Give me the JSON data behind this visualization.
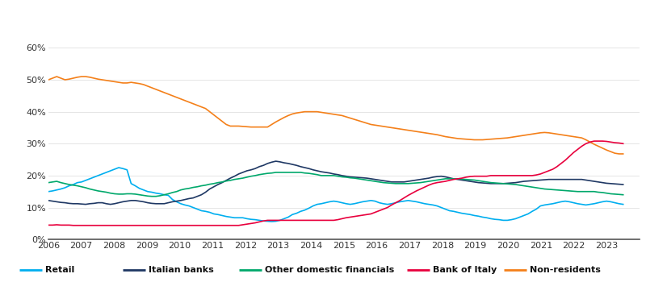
{
  "bg_header_color": "#1f4e79",
  "bg_chart_color": "#ffffff",
  "series_colors": {
    "Retail": "#00aeef",
    "Italian banks": "#1f3864",
    "Other domestic financials": "#00a86b",
    "Bank of Italy": "#e8003d",
    "Non-residents": "#f4801a"
  },
  "ylim": [
    0,
    0.62
  ],
  "yticks": [
    0.0,
    0.1,
    0.2,
    0.3,
    0.4,
    0.5,
    0.6
  ],
  "ytick_labels": [
    "0%",
    "10%",
    "20%",
    "30%",
    "40%",
    "50%",
    "60%"
  ],
  "xtick_labels": [
    "2006",
    "2007",
    "2008",
    "2009",
    "2010",
    "2011",
    "2012",
    "2013",
    "2014",
    "2015",
    "2016",
    "2017",
    "2018",
    "2019",
    "2020",
    "2021",
    "2022",
    "2023"
  ],
  "Retail": [
    0.15,
    0.152,
    0.155,
    0.158,
    0.162,
    0.168,
    0.172,
    0.178,
    0.18,
    0.185,
    0.19,
    0.195,
    0.2,
    0.205,
    0.21,
    0.215,
    0.22,
    0.225,
    0.222,
    0.218,
    0.175,
    0.168,
    0.16,
    0.155,
    0.15,
    0.148,
    0.145,
    0.143,
    0.14,
    0.138,
    0.125,
    0.118,
    0.112,
    0.108,
    0.105,
    0.1,
    0.095,
    0.09,
    0.088,
    0.085,
    0.08,
    0.078,
    0.075,
    0.072,
    0.07,
    0.068,
    0.068,
    0.068,
    0.065,
    0.063,
    0.062,
    0.06,
    0.058,
    0.057,
    0.056,
    0.057,
    0.06,
    0.065,
    0.07,
    0.078,
    0.082,
    0.088,
    0.092,
    0.098,
    0.105,
    0.11,
    0.112,
    0.115,
    0.118,
    0.12,
    0.118,
    0.115,
    0.112,
    0.11,
    0.112,
    0.115,
    0.118,
    0.12,
    0.122,
    0.12,
    0.115,
    0.112,
    0.11,
    0.112,
    0.115,
    0.118,
    0.12,
    0.122,
    0.12,
    0.118,
    0.115,
    0.112,
    0.11,
    0.108,
    0.105,
    0.1,
    0.095,
    0.09,
    0.088,
    0.085,
    0.082,
    0.08,
    0.078,
    0.075,
    0.073,
    0.07,
    0.068,
    0.065,
    0.063,
    0.062,
    0.06,
    0.06,
    0.062,
    0.065,
    0.07,
    0.075,
    0.08,
    0.088,
    0.095,
    0.105,
    0.108,
    0.11,
    0.112,
    0.115,
    0.118,
    0.12,
    0.118,
    0.115,
    0.112,
    0.11,
    0.108,
    0.11,
    0.112,
    0.115,
    0.118,
    0.12,
    0.118,
    0.115,
    0.112,
    0.11
  ],
  "Italian banks": [
    0.122,
    0.12,
    0.118,
    0.116,
    0.115,
    0.113,
    0.112,
    0.112,
    0.111,
    0.11,
    0.112,
    0.113,
    0.115,
    0.115,
    0.112,
    0.11,
    0.112,
    0.115,
    0.118,
    0.12,
    0.122,
    0.122,
    0.12,
    0.118,
    0.115,
    0.113,
    0.112,
    0.112,
    0.112,
    0.115,
    0.118,
    0.12,
    0.122,
    0.125,
    0.128,
    0.13,
    0.135,
    0.14,
    0.148,
    0.158,
    0.165,
    0.172,
    0.178,
    0.185,
    0.192,
    0.198,
    0.205,
    0.21,
    0.215,
    0.218,
    0.222,
    0.228,
    0.232,
    0.238,
    0.242,
    0.245,
    0.243,
    0.24,
    0.238,
    0.235,
    0.232,
    0.228,
    0.225,
    0.222,
    0.218,
    0.215,
    0.212,
    0.21,
    0.208,
    0.205,
    0.203,
    0.2,
    0.198,
    0.196,
    0.195,
    0.194,
    0.193,
    0.192,
    0.19,
    0.188,
    0.186,
    0.184,
    0.182,
    0.18,
    0.18,
    0.18,
    0.18,
    0.182,
    0.184,
    0.186,
    0.188,
    0.19,
    0.192,
    0.195,
    0.197,
    0.198,
    0.196,
    0.193,
    0.19,
    0.188,
    0.186,
    0.184,
    0.182,
    0.18,
    0.178,
    0.177,
    0.176,
    0.175,
    0.175,
    0.175,
    0.175,
    0.176,
    0.177,
    0.178,
    0.18,
    0.182,
    0.183,
    0.184,
    0.185,
    0.186,
    0.187,
    0.188,
    0.188,
    0.188,
    0.188,
    0.188,
    0.188,
    0.188,
    0.188,
    0.188,
    0.186,
    0.184,
    0.182,
    0.18,
    0.178,
    0.176,
    0.175,
    0.174,
    0.173,
    0.172
  ],
  "Other domestic financials": [
    0.178,
    0.18,
    0.182,
    0.178,
    0.175,
    0.172,
    0.17,
    0.168,
    0.165,
    0.162,
    0.158,
    0.155,
    0.152,
    0.15,
    0.148,
    0.145,
    0.143,
    0.142,
    0.142,
    0.143,
    0.143,
    0.142,
    0.14,
    0.138,
    0.136,
    0.135,
    0.135,
    0.137,
    0.14,
    0.143,
    0.147,
    0.15,
    0.155,
    0.158,
    0.16,
    0.163,
    0.165,
    0.168,
    0.17,
    0.173,
    0.175,
    0.178,
    0.18,
    0.183,
    0.185,
    0.188,
    0.19,
    0.192,
    0.195,
    0.198,
    0.2,
    0.203,
    0.205,
    0.207,
    0.208,
    0.21,
    0.21,
    0.21,
    0.21,
    0.21,
    0.21,
    0.21,
    0.208,
    0.207,
    0.205,
    0.203,
    0.2,
    0.2,
    0.2,
    0.2,
    0.198,
    0.196,
    0.195,
    0.193,
    0.192,
    0.19,
    0.188,
    0.186,
    0.184,
    0.182,
    0.18,
    0.178,
    0.177,
    0.176,
    0.175,
    0.175,
    0.175,
    0.175,
    0.176,
    0.177,
    0.178,
    0.18,
    0.182,
    0.184,
    0.186,
    0.188,
    0.19,
    0.19,
    0.19,
    0.19,
    0.189,
    0.188,
    0.187,
    0.186,
    0.184,
    0.182,
    0.18,
    0.178,
    0.177,
    0.176,
    0.175,
    0.174,
    0.173,
    0.172,
    0.17,
    0.168,
    0.166,
    0.164,
    0.162,
    0.16,
    0.158,
    0.157,
    0.156,
    0.155,
    0.154,
    0.153,
    0.152,
    0.151,
    0.15,
    0.15,
    0.15,
    0.15,
    0.15,
    0.148,
    0.147,
    0.145,
    0.143,
    0.142,
    0.141,
    0.14
  ],
  "Bank of Italy": [
    0.045,
    0.045,
    0.046,
    0.045,
    0.045,
    0.045,
    0.044,
    0.044,
    0.044,
    0.044,
    0.044,
    0.044,
    0.044,
    0.044,
    0.044,
    0.044,
    0.044,
    0.044,
    0.044,
    0.044,
    0.044,
    0.044,
    0.044,
    0.044,
    0.044,
    0.044,
    0.044,
    0.044,
    0.044,
    0.044,
    0.044,
    0.044,
    0.044,
    0.044,
    0.044,
    0.044,
    0.044,
    0.044,
    0.044,
    0.044,
    0.044,
    0.044,
    0.044,
    0.044,
    0.044,
    0.044,
    0.044,
    0.046,
    0.048,
    0.05,
    0.052,
    0.055,
    0.058,
    0.06,
    0.06,
    0.06,
    0.06,
    0.06,
    0.06,
    0.06,
    0.06,
    0.06,
    0.06,
    0.06,
    0.06,
    0.06,
    0.06,
    0.06,
    0.06,
    0.06,
    0.062,
    0.065,
    0.068,
    0.07,
    0.072,
    0.074,
    0.076,
    0.078,
    0.08,
    0.085,
    0.09,
    0.095,
    0.1,
    0.108,
    0.115,
    0.122,
    0.13,
    0.138,
    0.145,
    0.152,
    0.158,
    0.164,
    0.17,
    0.175,
    0.178,
    0.18,
    0.182,
    0.185,
    0.188,
    0.19,
    0.192,
    0.195,
    0.197,
    0.198,
    0.198,
    0.198,
    0.198,
    0.2,
    0.2,
    0.2,
    0.2,
    0.2,
    0.2,
    0.2,
    0.2,
    0.2,
    0.2,
    0.2,
    0.202,
    0.205,
    0.21,
    0.215,
    0.22,
    0.228,
    0.238,
    0.248,
    0.26,
    0.272,
    0.282,
    0.292,
    0.3,
    0.305,
    0.308,
    0.308,
    0.308,
    0.307,
    0.305,
    0.303,
    0.302,
    0.3
  ],
  "Non-residents": [
    0.5,
    0.505,
    0.51,
    0.505,
    0.5,
    0.502,
    0.505,
    0.508,
    0.51,
    0.51,
    0.508,
    0.505,
    0.502,
    0.5,
    0.498,
    0.496,
    0.494,
    0.492,
    0.49,
    0.49,
    0.492,
    0.49,
    0.488,
    0.485,
    0.48,
    0.475,
    0.47,
    0.465,
    0.46,
    0.455,
    0.45,
    0.445,
    0.44,
    0.435,
    0.43,
    0.425,
    0.42,
    0.415,
    0.41,
    0.4,
    0.39,
    0.38,
    0.37,
    0.36,
    0.355,
    0.355,
    0.355,
    0.354,
    0.353,
    0.352,
    0.352,
    0.352,
    0.352,
    0.352,
    0.36,
    0.368,
    0.375,
    0.382,
    0.388,
    0.393,
    0.396,
    0.398,
    0.4,
    0.4,
    0.4,
    0.4,
    0.398,
    0.396,
    0.394,
    0.392,
    0.39,
    0.388,
    0.384,
    0.38,
    0.376,
    0.372,
    0.368,
    0.364,
    0.36,
    0.358,
    0.356,
    0.354,
    0.352,
    0.35,
    0.348,
    0.346,
    0.344,
    0.342,
    0.34,
    0.338,
    0.336,
    0.334,
    0.332,
    0.33,
    0.328,
    0.325,
    0.322,
    0.32,
    0.318,
    0.316,
    0.315,
    0.314,
    0.313,
    0.312,
    0.312,
    0.312,
    0.313,
    0.314,
    0.315,
    0.316,
    0.317,
    0.318,
    0.32,
    0.322,
    0.324,
    0.326,
    0.328,
    0.33,
    0.332,
    0.334,
    0.335,
    0.334,
    0.332,
    0.33,
    0.328,
    0.326,
    0.324,
    0.322,
    0.32,
    0.318,
    0.312,
    0.305,
    0.298,
    0.292,
    0.286,
    0.28,
    0.275,
    0.27,
    0.268,
    0.268
  ]
}
